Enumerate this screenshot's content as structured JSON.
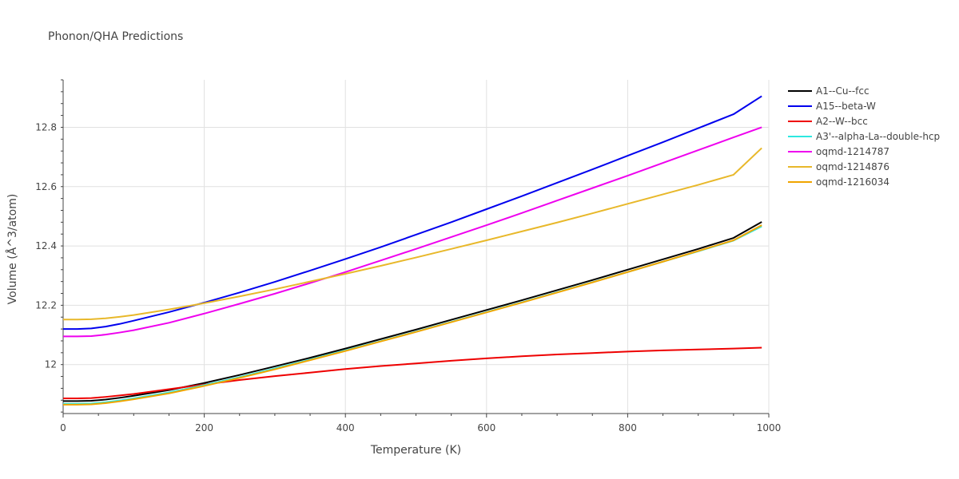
{
  "chart_data": {
    "type": "line",
    "title": "Phonon/QHA Predictions",
    "xlabel": "Temperature (K)",
    "ylabel": "Volume (Å^3/atom)",
    "xlim": [
      0,
      1000
    ],
    "ylim": [
      11.835,
      12.96
    ],
    "xticks": [
      0,
      200,
      400,
      600,
      800,
      1000
    ],
    "xtick_labels": [
      "0",
      "200",
      "400",
      "600",
      "800",
      "1000"
    ],
    "yticks": [
      12.0,
      12.2,
      12.4,
      12.6,
      12.8
    ],
    "ytick_labels": [
      "12",
      "12.2",
      "12.4",
      "12.6",
      "12.8"
    ],
    "grid": true,
    "legend_position": "right",
    "x": [
      0,
      20,
      40,
      60,
      80,
      100,
      150,
      200,
      250,
      300,
      350,
      400,
      450,
      500,
      550,
      600,
      650,
      700,
      750,
      800,
      850,
      900,
      950,
      990
    ],
    "series": [
      {
        "name": "A1--Cu--fcc",
        "color": "#000000",
        "values": [
          11.877,
          11.877,
          11.878,
          11.882,
          11.888,
          11.895,
          11.914,
          11.938,
          11.965,
          11.994,
          12.023,
          12.054,
          12.086,
          12.118,
          12.151,
          12.184,
          12.217,
          12.251,
          12.285,
          12.32,
          12.355,
          12.39,
          12.427,
          12.481
        ]
      },
      {
        "name": "A15--beta-W",
        "color": "#0000ee",
        "values": [
          12.12,
          12.12,
          12.122,
          12.128,
          12.137,
          12.148,
          12.177,
          12.209,
          12.243,
          12.279,
          12.317,
          12.356,
          12.396,
          12.438,
          12.48,
          12.524,
          12.568,
          12.613,
          12.658,
          12.704,
          12.75,
          12.797,
          12.844,
          12.905
        ]
      },
      {
        "name": "A2--W--bcc",
        "color": "#ee0000",
        "values": [
          11.886,
          11.886,
          11.887,
          11.891,
          11.896,
          11.901,
          11.917,
          11.933,
          11.948,
          11.961,
          11.973,
          11.985,
          11.995,
          12.004,
          12.013,
          12.021,
          12.028,
          12.034,
          12.039,
          12.044,
          12.048,
          12.051,
          12.054,
          12.057
        ]
      },
      {
        "name": "A3'--alpha-La--double-hcp",
        "color": "#2de8e0",
        "values": [
          11.868,
          11.868,
          11.869,
          11.873,
          11.879,
          11.886,
          11.906,
          11.931,
          11.958,
          11.987,
          12.017,
          12.048,
          12.079,
          12.111,
          12.144,
          12.177,
          12.21,
          12.244,
          12.278,
          12.312,
          12.347,
          12.382,
          12.418,
          12.466
        ]
      },
      {
        "name": "oqmd-1214787",
        "color": "#ee00ee",
        "values": [
          12.095,
          12.095,
          12.096,
          12.101,
          12.108,
          12.116,
          12.141,
          12.172,
          12.205,
          12.239,
          12.275,
          12.312,
          12.351,
          12.39,
          12.43,
          12.47,
          12.511,
          12.553,
          12.595,
          12.637,
          12.68,
          12.723,
          12.766,
          12.8
        ]
      },
      {
        "name": "oqmd-1214876",
        "color": "#e8b82a",
        "values": [
          12.152,
          12.152,
          12.153,
          12.156,
          12.161,
          12.167,
          12.186,
          12.207,
          12.23,
          12.254,
          12.28,
          12.306,
          12.333,
          12.361,
          12.39,
          12.419,
          12.449,
          12.479,
          12.51,
          12.542,
          12.574,
          12.606,
          12.64,
          12.73
        ]
      },
      {
        "name": "oqmd-1216034",
        "color": "#f0a500",
        "values": [
          11.865,
          11.865,
          11.866,
          11.87,
          11.876,
          11.883,
          11.903,
          11.928,
          11.955,
          11.984,
          12.015,
          12.046,
          12.078,
          12.11,
          12.143,
          12.176,
          12.209,
          12.243,
          12.277,
          12.312,
          12.347,
          12.383,
          12.419,
          12.47
        ]
      }
    ]
  }
}
